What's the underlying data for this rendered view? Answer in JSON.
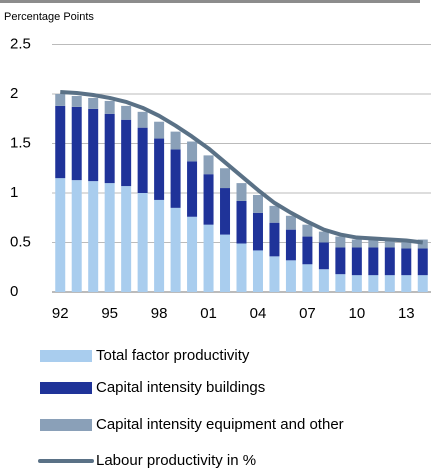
{
  "chart_data": {
    "type": "bar",
    "stacked": true,
    "y_label": "Percentage Points",
    "categories": [
      "92",
      null,
      null,
      "95",
      null,
      null,
      "98",
      null,
      null,
      "01",
      null,
      null,
      "04",
      null,
      null,
      "07",
      null,
      null,
      "10",
      null,
      null,
      "13",
      null
    ],
    "series": [
      {
        "name": "Total factor productivity",
        "color": "#a9cdee",
        "values": [
          1.15,
          1.13,
          1.12,
          1.1,
          1.07,
          1.0,
          0.93,
          0.85,
          0.76,
          0.68,
          0.58,
          0.49,
          0.42,
          0.36,
          0.32,
          0.28,
          0.23,
          0.18,
          0.17,
          0.17,
          0.17,
          0.17,
          0.17
        ]
      },
      {
        "name": "Capital intensity buildings",
        "color": "#1f3399",
        "values": [
          0.73,
          0.74,
          0.73,
          0.7,
          0.67,
          0.66,
          0.62,
          0.59,
          0.56,
          0.51,
          0.47,
          0.43,
          0.38,
          0.34,
          0.31,
          0.28,
          0.27,
          0.27,
          0.28,
          0.28,
          0.28,
          0.27,
          0.27
        ]
      },
      {
        "name": "Capital intensity equipment and other",
        "color": "#8aa0b8",
        "values": [
          0.12,
          0.11,
          0.11,
          0.13,
          0.14,
          0.16,
          0.17,
          0.18,
          0.2,
          0.19,
          0.2,
          0.18,
          0.18,
          0.17,
          0.14,
          0.12,
          0.11,
          0.11,
          0.08,
          0.08,
          0.08,
          0.08,
          0.09
        ]
      },
      {
        "name": "Labour productivity in %",
        "color": "#5a7186",
        "type": "line",
        "values": [
          2.02,
          2.01,
          1.99,
          1.96,
          1.92,
          1.86,
          1.78,
          1.68,
          1.57,
          1.45,
          1.31,
          1.17,
          1.03,
          0.9,
          0.8,
          0.71,
          0.63,
          0.58,
          0.55,
          0.54,
          0.53,
          0.52,
          0.5
        ]
      }
    ],
    "ylim": [
      0,
      2.5
    ],
    "yticks": [
      0,
      0.5,
      1,
      1.5,
      2,
      2.5
    ],
    "grid": true
  }
}
